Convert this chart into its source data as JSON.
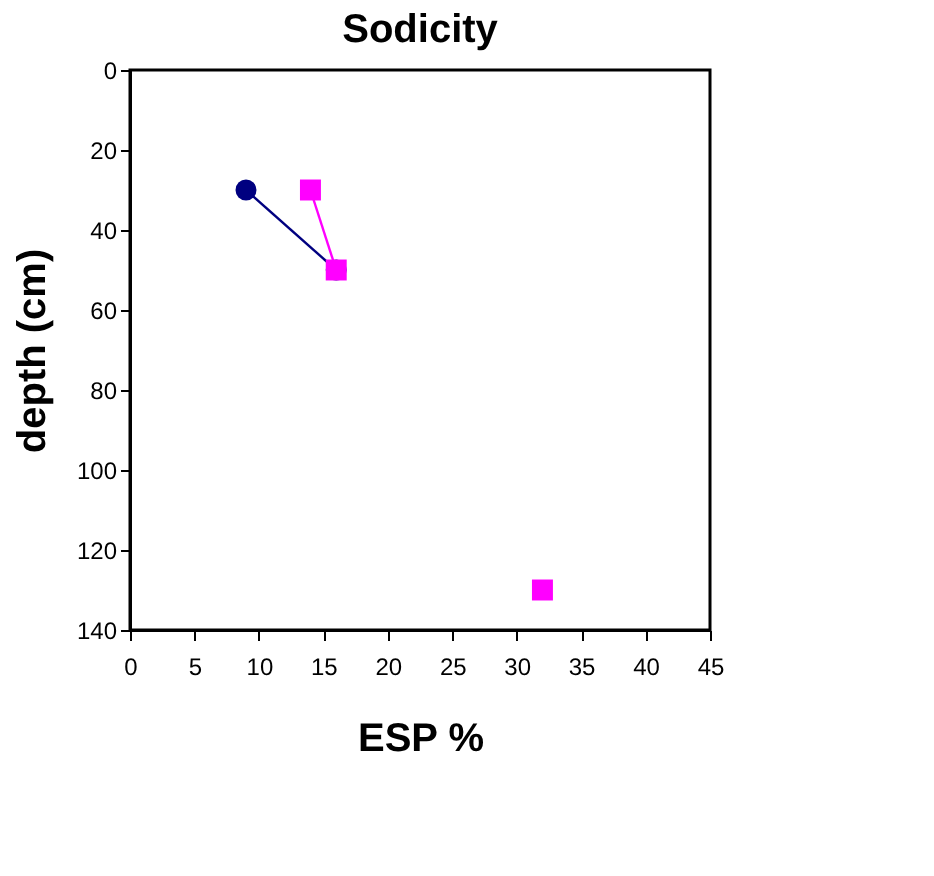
{
  "chart_data": {
    "type": "line",
    "title": "Sodicity",
    "xlabel": "ESP %",
    "ylabel": "depth (cm)",
    "xlim": [
      0,
      45
    ],
    "xticks": [
      0,
      5,
      10,
      15,
      20,
      25,
      30,
      35,
      40,
      45
    ],
    "ylim": [
      140,
      0
    ],
    "yticks": [
      0,
      20,
      40,
      60,
      80,
      100,
      120,
      140
    ],
    "grid": false,
    "line_style": "solid",
    "series": [
      {
        "color": "#000080",
        "marker": "circle",
        "x": [
          9,
          16
        ],
        "values": [
          30,
          50
        ]
      },
      {
        "color": "#ff00ff",
        "marker": "square",
        "x": [
          14,
          16,
          null,
          32
        ],
        "values": [
          30,
          50,
          null,
          130
        ]
      }
    ]
  }
}
